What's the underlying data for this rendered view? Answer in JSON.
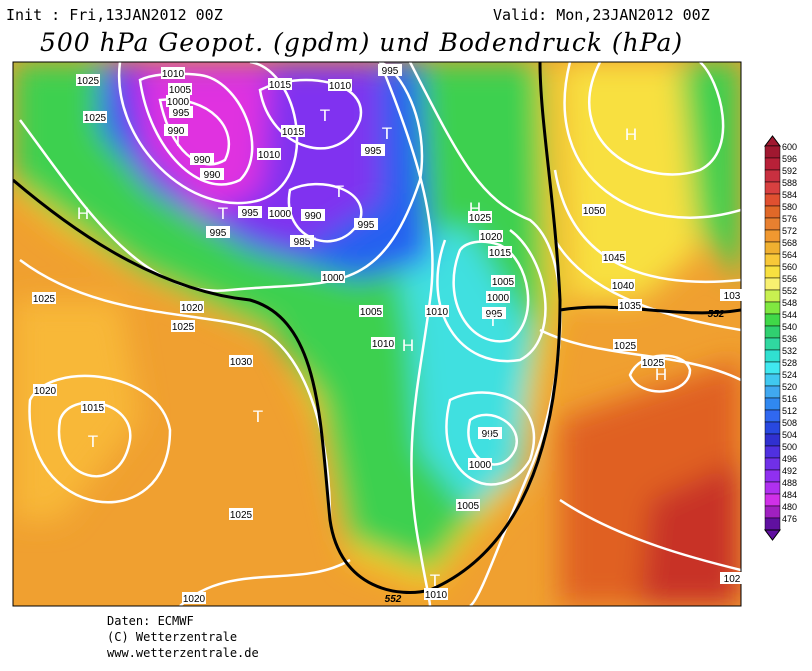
{
  "header": {
    "init": "Init : Fri,13JAN2012 00Z",
    "valid": "Valid: Mon,23JAN2012 00Z",
    "title": "500 hPa Geopot. (gpdm) und Bodendruck (hPa)"
  },
  "map": {
    "isobar_labels": [
      "1025",
      "1010",
      "1005",
      "1000",
      "995",
      "990",
      "990",
      "990",
      "1015",
      "1010",
      "995",
      "1015",
      "1010",
      "995",
      "995",
      "1000",
      "990",
      "985",
      "995",
      "995",
      "1000",
      "1025",
      "1025",
      "1020",
      "1025",
      "1030",
      "1020",
      "1015",
      "1025",
      "1020",
      "1005",
      "1010",
      "1010",
      "1025",
      "1020",
      "1015",
      "1005",
      "1000",
      "995",
      "995",
      "1000",
      "1005",
      "1010",
      "1050",
      "1045",
      "1040",
      "1035",
      "1025",
      "1025",
      "103",
      "102"
    ],
    "centers": [
      "H",
      "H",
      "H",
      "H",
      "H",
      "T",
      "T",
      "T",
      "T",
      "T",
      "T",
      "T",
      "T",
      "T",
      "T",
      "T"
    ],
    "contour_552_labels": [
      "552",
      "552"
    ]
  },
  "colorbar": {
    "labels": [
      "600",
      "596",
      "592",
      "588",
      "584",
      "580",
      "576",
      "572",
      "568",
      "564",
      "560",
      "556",
      "552",
      "548",
      "544",
      "540",
      "536",
      "532",
      "528",
      "524",
      "520",
      "516",
      "512",
      "508",
      "504",
      "500",
      "496",
      "492",
      "488",
      "484",
      "480",
      "476"
    ]
  },
  "footer": {
    "source": "Daten: ECMWF",
    "copyright": "(C) Wetterzentrale",
    "url": "www.wetterzentrale.de"
  }
}
